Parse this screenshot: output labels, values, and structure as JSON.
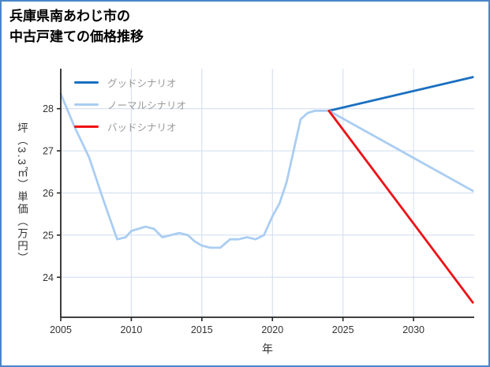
{
  "page": {
    "border_color": "#4a86c8",
    "background": "#ffffff"
  },
  "title": {
    "line1": "兵庫県南あわじ市の",
    "line2": "中古戸建ての価格推移"
  },
  "chart_data": {
    "type": "line",
    "title": "兵庫県南あわじ市の中古戸建ての価格推移",
    "xlabel": "年",
    "ylabel": "坪（3.3㎡）単価（万円）",
    "xlim": [
      2005,
      2034.3
    ],
    "ylim": [
      23.05,
      28.95
    ],
    "xticks": [
      2005,
      2010,
      2015,
      2020,
      2025,
      2030
    ],
    "yticks": [
      24,
      25,
      26,
      27,
      28
    ],
    "grid": true,
    "legend": {
      "position": "upper-left",
      "text_color": "#999999"
    },
    "colors": {
      "grid": "#cfdcee",
      "spine": "#262626",
      "tick_label": "#333333"
    },
    "series": [
      {
        "name": "グッドシナリオ",
        "color": "#1a70c0",
        "x": [
          2024,
          2034.2
        ],
        "y": [
          27.95,
          28.75
        ]
      },
      {
        "name": "ノーマルシナリオ",
        "color": "#aacdf2",
        "x": [
          2005,
          2006,
          2007,
          2008,
          2009,
          2009.6,
          2010,
          2011,
          2011.6,
          2012.2,
          2012.8,
          2013.4,
          2014,
          2014.5,
          2015,
          2015.6,
          2016.3,
          2017,
          2017.6,
          2018.2,
          2018.8,
          2019.4,
          2020,
          2020.5,
          2021,
          2022,
          2022.5,
          2023,
          2024,
          2034.2
        ],
        "y": [
          28.35,
          27.55,
          26.85,
          25.85,
          24.9,
          24.95,
          25.1,
          25.2,
          25.15,
          24.95,
          25.0,
          25.05,
          25.0,
          24.85,
          24.75,
          24.7,
          24.7,
          24.9,
          24.9,
          24.95,
          24.9,
          25.0,
          25.45,
          25.75,
          26.25,
          27.75,
          27.9,
          27.95,
          27.95,
          26.05
        ]
      },
      {
        "name": "バッドシナリオ",
        "color": "#ee1014",
        "x": [
          2024,
          2034.2
        ],
        "y": [
          27.95,
          23.4
        ]
      }
    ]
  }
}
